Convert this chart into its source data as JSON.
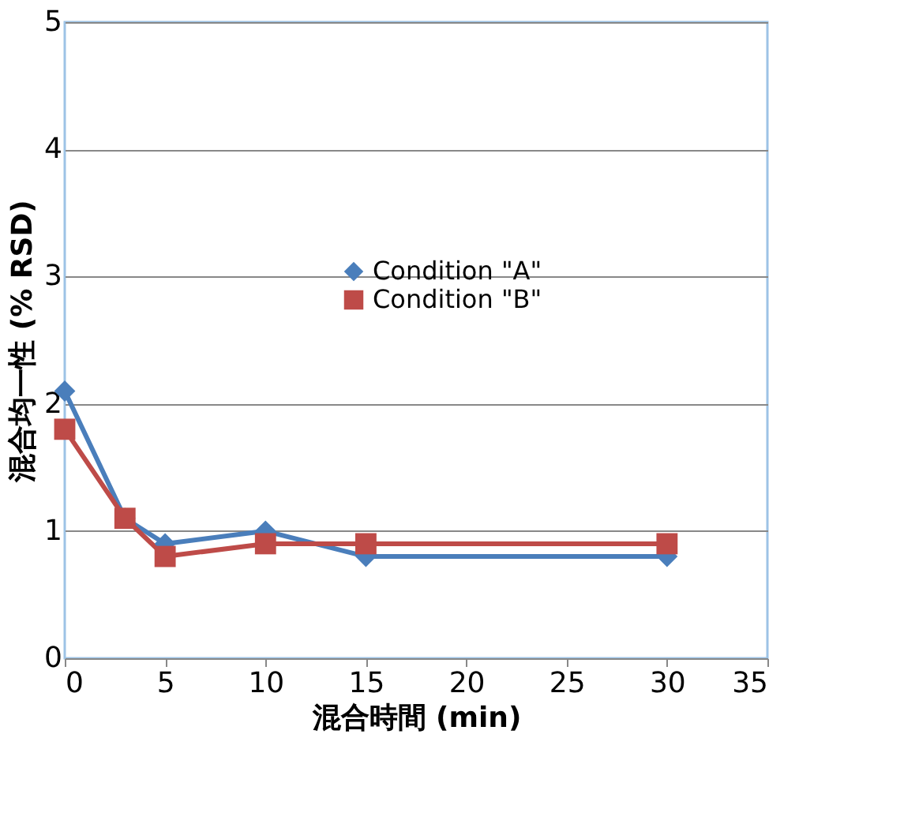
{
  "chart_data": {
    "type": "line",
    "xlabel": "混合時間 (min)",
    "ylabel": "混合均一性 (% RSD)",
    "x": [
      0,
      3,
      5,
      10,
      15,
      30
    ],
    "series": [
      {
        "name": "Condition \"A\"",
        "color": "#4a7ebb",
        "marker": "diamond",
        "values": [
          2.1,
          1.1,
          0.9,
          1.0,
          0.8,
          0.8
        ]
      },
      {
        "name": "Condition \"B\"",
        "color": "#be4b48",
        "marker": "square",
        "values": [
          1.8,
          1.1,
          0.8,
          0.9,
          0.9,
          0.9
        ]
      }
    ],
    "xlim": [
      0,
      35
    ],
    "xticks": [
      0,
      5,
      10,
      15,
      20,
      25,
      30,
      35
    ],
    "ylim": [
      0,
      5
    ],
    "yticks": [
      0,
      1,
      2,
      3,
      4,
      5
    ],
    "grid": "y",
    "legend": "top right",
    "line_style": "solid"
  }
}
